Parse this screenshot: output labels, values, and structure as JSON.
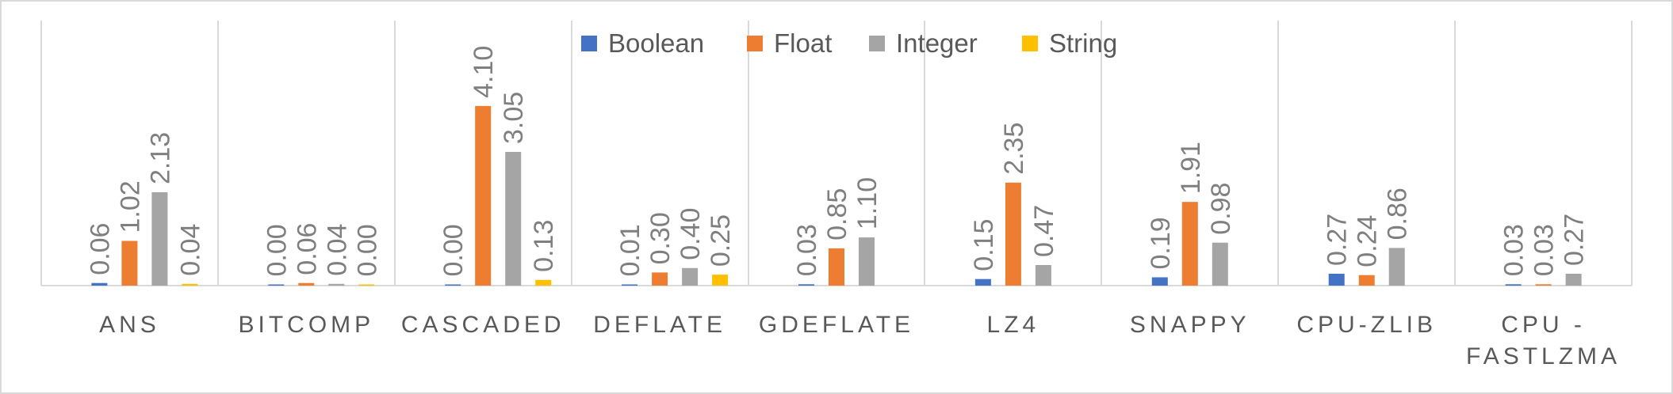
{
  "chart_data": {
    "type": "bar",
    "title": "",
    "xlabel": "",
    "ylabel": "",
    "ylim": [
      0,
      4.2
    ],
    "grid": false,
    "legend_position": "top",
    "categories": [
      "ANS",
      "BITCOMP",
      "CASCADED",
      "DEFLATE",
      "GDEFLATE",
      "LZ4",
      "SNAPPY",
      "CPU-ZLIB",
      "CPU - FASTLZMA"
    ],
    "series": [
      {
        "name": "Boolean",
        "color": "#4472c4",
        "values": [
          0.06,
          0.0,
          0.0,
          0.01,
          0.03,
          0.15,
          0.19,
          0.27,
          0.03
        ],
        "labels": [
          "0.06",
          "0.00",
          "0.00",
          "0.01",
          "0.03",
          "0.15",
          "0.19",
          "0.27",
          "0.03"
        ]
      },
      {
        "name": "Float",
        "color": "#ed7d31",
        "values": [
          1.02,
          0.06,
          4.1,
          0.3,
          0.85,
          2.35,
          1.91,
          0.24,
          0.03
        ],
        "labels": [
          "1.02",
          "0.06",
          "4.10",
          "0.30",
          "0.85",
          "2.35",
          "1.91",
          "0.24",
          "0.03"
        ]
      },
      {
        "name": "Integer",
        "color": "#a5a5a5",
        "values": [
          2.13,
          0.04,
          3.05,
          0.4,
          1.1,
          0.47,
          0.98,
          0.86,
          0.27
        ],
        "labels": [
          "2.13",
          "0.04",
          "3.05",
          "0.40",
          "1.10",
          "0.47",
          "0.98",
          "0.86",
          "0.27"
        ]
      },
      {
        "name": "String",
        "color": "#ffc000",
        "values": [
          0.04,
          0.0,
          0.13,
          0.25,
          null,
          null,
          null,
          null,
          null
        ],
        "labels": [
          "0.04",
          "0.00",
          "0.13",
          "0.25",
          null,
          null,
          null,
          null,
          null
        ]
      }
    ]
  }
}
